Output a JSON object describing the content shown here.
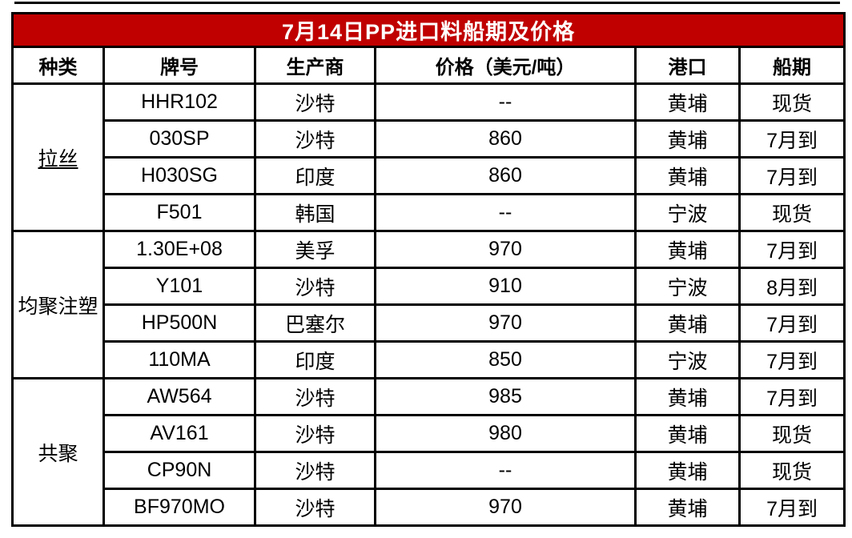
{
  "table": {
    "title": "7月14日PP进口料船期及价格",
    "columns": [
      "种类",
      "牌号",
      "生产商",
      "价格（美元/吨）",
      "港口",
      "船期"
    ],
    "groups": [
      {
        "category": "拉丝",
        "underline": true,
        "rows": [
          [
            "HHR102",
            "沙特",
            "--",
            "黄埔",
            "现货"
          ],
          [
            "030SP",
            "沙特",
            "860",
            "黄埔",
            "7月到"
          ],
          [
            "H030SG",
            "印度",
            "860",
            "黄埔",
            "7月到"
          ],
          [
            "F501",
            "韩国",
            "--",
            "宁波",
            "现货"
          ]
        ]
      },
      {
        "category": "均聚注塑",
        "underline": false,
        "rows": [
          [
            "1.30E+08",
            "美孚",
            "970",
            "黄埔",
            "7月到"
          ],
          [
            "Y101",
            "沙特",
            "910",
            "宁波",
            "8月到"
          ],
          [
            "HP500N",
            "巴塞尔",
            "970",
            "黄埔",
            "7月到"
          ],
          [
            "110MA",
            "印度",
            "850",
            "宁波",
            "7月到"
          ]
        ]
      },
      {
        "category": "共聚",
        "underline": false,
        "rows": [
          [
            "AW564",
            "沙特",
            "985",
            "黄埔",
            "7月到"
          ],
          [
            "AV161",
            "沙特",
            "980",
            "黄埔",
            "现货"
          ],
          [
            "CP90N",
            "沙特",
            "--",
            "黄埔",
            "现货"
          ],
          [
            "BF970MO",
            "沙特",
            "970",
            "黄埔",
            "7月到"
          ]
        ]
      }
    ]
  },
  "chart_data": {
    "type": "table",
    "title": "7月14日PP进口料船期及价格",
    "columns": [
      "种类",
      "牌号",
      "生产商",
      "价格（美元/吨）",
      "港口",
      "船期"
    ],
    "rows": [
      [
        "拉丝",
        "HHR102",
        "沙特",
        "--",
        "黄埔",
        "现货"
      ],
      [
        "拉丝",
        "030SP",
        "沙特",
        "860",
        "黄埔",
        "7月到"
      ],
      [
        "拉丝",
        "H030SG",
        "印度",
        "860",
        "黄埔",
        "7月到"
      ],
      [
        "拉丝",
        "F501",
        "韩国",
        "--",
        "宁波",
        "现货"
      ],
      [
        "均聚注塑",
        "1.30E+08",
        "美孚",
        "970",
        "黄埔",
        "7月到"
      ],
      [
        "均聚注塑",
        "Y101",
        "沙特",
        "910",
        "宁波",
        "8月到"
      ],
      [
        "均聚注塑",
        "HP500N",
        "巴塞尔",
        "970",
        "黄埔",
        "7月到"
      ],
      [
        "均聚注塑",
        "110MA",
        "印度",
        "850",
        "宁波",
        "7月到"
      ],
      [
        "共聚",
        "AW564",
        "沙特",
        "985",
        "黄埔",
        "7月到"
      ],
      [
        "共聚",
        "AV161",
        "沙特",
        "980",
        "黄埔",
        "现货"
      ],
      [
        "共聚",
        "CP90N",
        "沙特",
        "--",
        "黄埔",
        "现货"
      ],
      [
        "共聚",
        "BF970MO",
        "沙特",
        "970",
        "黄埔",
        "7月到"
      ]
    ],
    "layout_hints": {
      "merged_first_column_groups": [
        4,
        4,
        4
      ],
      "title_row_background": "#C00000",
      "grid": "thick-black-borders"
    }
  },
  "colors": {
    "title_bg": "#C00000",
    "title_text": "#FFFFFF",
    "border": "#000000",
    "cell_bg": "#FFFFFF",
    "text": "#000000"
  }
}
